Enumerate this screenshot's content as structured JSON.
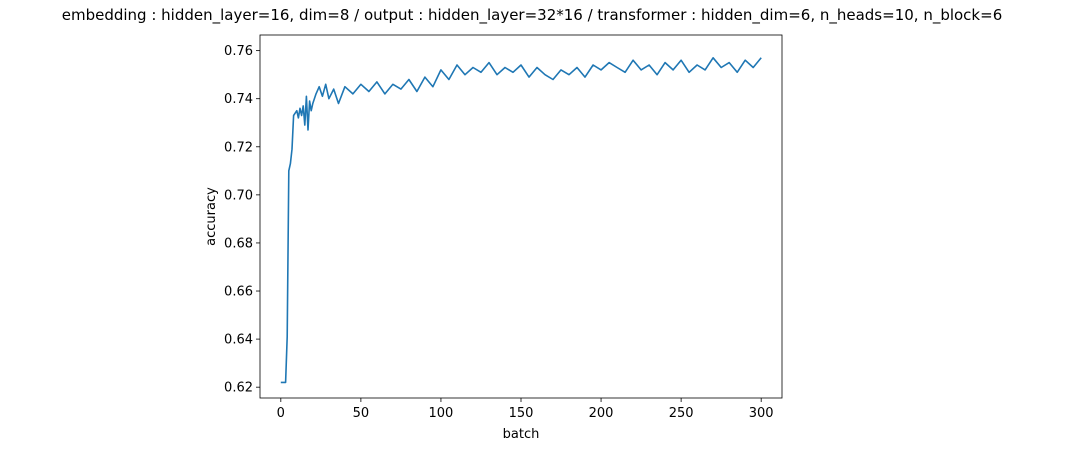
{
  "chart_data": {
    "type": "line",
    "title": "embedding : hidden_layer=16, dim=8 / output : hidden_layer=32*16 / transformer : hidden_dim=6, n_heads=10, n_block=6",
    "xlabel": "batch",
    "ylabel": "accuracy",
    "xlim": [
      -13,
      313
    ],
    "ylim": [
      0.6155,
      0.7665
    ],
    "x_ticks": [
      0,
      50,
      100,
      150,
      200,
      250,
      300
    ],
    "y_ticks": [
      0.62,
      0.64,
      0.66,
      0.68,
      0.7,
      0.72,
      0.74,
      0.76
    ],
    "y_tick_labels": [
      "0.62",
      "0.64",
      "0.66",
      "0.68",
      "0.70",
      "0.72",
      "0.74",
      "0.76"
    ],
    "grid": false,
    "series": [
      {
        "color": "#1f77b4",
        "x": [
          0,
          3,
          4,
          5,
          6,
          7,
          8,
          9,
          10,
          11,
          12,
          13,
          14,
          15,
          16,
          17,
          18,
          19,
          20,
          22,
          24,
          26,
          28,
          30,
          33,
          36,
          40,
          45,
          50,
          55,
          60,
          65,
          70,
          75,
          80,
          85,
          90,
          95,
          100,
          105,
          110,
          115,
          120,
          125,
          130,
          135,
          140,
          145,
          150,
          155,
          160,
          165,
          170,
          175,
          180,
          185,
          190,
          195,
          200,
          205,
          210,
          215,
          220,
          225,
          230,
          235,
          240,
          245,
          250,
          255,
          260,
          265,
          270,
          275,
          280,
          285,
          290,
          295,
          300
        ],
        "y": [
          0.622,
          0.622,
          0.641,
          0.71,
          0.713,
          0.719,
          0.733,
          0.734,
          0.735,
          0.732,
          0.736,
          0.733,
          0.737,
          0.729,
          0.741,
          0.727,
          0.739,
          0.735,
          0.738,
          0.742,
          0.745,
          0.741,
          0.746,
          0.74,
          0.744,
          0.738,
          0.745,
          0.742,
          0.746,
          0.743,
          0.747,
          0.742,
          0.746,
          0.744,
          0.748,
          0.743,
          0.749,
          0.745,
          0.752,
          0.748,
          0.754,
          0.75,
          0.753,
          0.751,
          0.755,
          0.75,
          0.753,
          0.751,
          0.754,
          0.749,
          0.753,
          0.75,
          0.748,
          0.752,
          0.75,
          0.753,
          0.749,
          0.754,
          0.752,
          0.755,
          0.753,
          0.751,
          0.756,
          0.752,
          0.754,
          0.75,
          0.755,
          0.752,
          0.756,
          0.751,
          0.754,
          0.752,
          0.757,
          0.753,
          0.755,
          0.751,
          0.756,
          0.753,
          0.757
        ]
      }
    ]
  }
}
